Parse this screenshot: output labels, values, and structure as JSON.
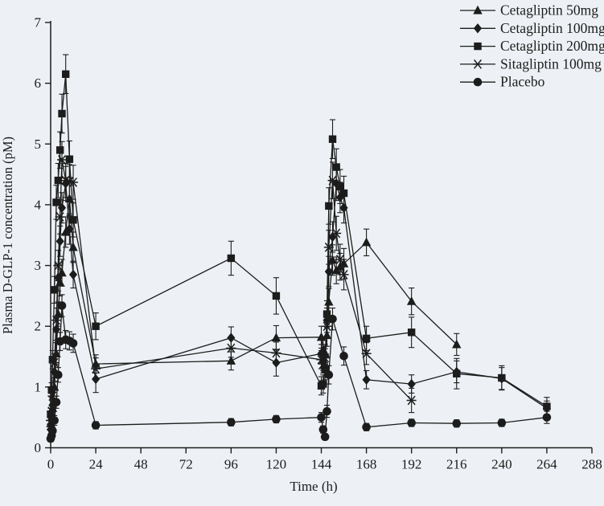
{
  "figure": {
    "background": "#edf1f5",
    "ink": "#1c1c1c"
  },
  "chart_data": {
    "type": "line",
    "title": "",
    "xlabel": "Time (h)",
    "ylabel": "Plasma D-GLP-1 concentration (pM)",
    "xlim": [
      0,
      288
    ],
    "ylim": [
      0,
      7
    ],
    "xticks": [
      0,
      24,
      48,
      72,
      96,
      120,
      144,
      168,
      192,
      216,
      240,
      264,
      288
    ],
    "yticks": [
      0,
      1,
      2,
      3,
      4,
      5,
      6,
      7
    ],
    "grid": false,
    "error_bars": true,
    "legend_position": "top-right",
    "legend": [
      "Cetagliptin 50mg",
      "Cetagliptin 100mg",
      "Cetagliptin 200mg",
      "Sitagliptin 100mg",
      "Placebo"
    ],
    "series": [
      {
        "name": "Cetagliptin 50mg",
        "marker": "triangle",
        "points": [
          [
            0,
            0.4,
            0.1
          ],
          [
            0.5,
            0.5,
            0.1
          ],
          [
            1,
            0.65,
            0.12
          ],
          [
            2,
            1.0,
            0.15
          ],
          [
            3,
            1.55,
            0.18
          ],
          [
            4,
            2.2,
            0.2
          ],
          [
            5,
            2.72,
            0.22
          ],
          [
            6,
            2.88,
            0.22
          ],
          [
            8,
            3.55,
            0.25
          ],
          [
            10,
            4.1,
            0.28
          ],
          [
            12,
            3.3,
            0.25
          ],
          [
            24,
            1.38,
            0.15
          ],
          [
            96,
            1.43,
            0.15
          ],
          [
            120,
            1.81,
            0.2
          ],
          [
            144,
            1.82,
            0.18
          ],
          [
            145,
            1.62,
            0.15
          ],
          [
            146,
            1.55,
            0.15
          ],
          [
            147,
            1.85,
            0.18
          ],
          [
            148,
            2.4,
            0.22
          ],
          [
            150,
            3.09,
            0.25
          ],
          [
            152,
            2.92,
            0.22
          ],
          [
            154,
            2.98,
            0.22
          ],
          [
            156,
            3.03,
            0.25
          ],
          [
            168,
            3.38,
            0.22
          ],
          [
            192,
            2.41,
            0.22
          ],
          [
            216,
            1.7,
            0.18
          ]
        ]
      },
      {
        "name": "Cetagliptin 100mg",
        "marker": "diamond",
        "points": [
          [
            0,
            0.3,
            0.08
          ],
          [
            0.5,
            0.45,
            0.1
          ],
          [
            1,
            0.7,
            0.12
          ],
          [
            2,
            1.25,
            0.15
          ],
          [
            3,
            1.95,
            0.18
          ],
          [
            4,
            2.8,
            0.22
          ],
          [
            5,
            3.4,
            0.25
          ],
          [
            6,
            3.95,
            0.25
          ],
          [
            8,
            4.35,
            0.28
          ],
          [
            10,
            3.6,
            0.25
          ],
          [
            12,
            2.85,
            0.22
          ],
          [
            24,
            1.13,
            0.22
          ],
          [
            96,
            1.81,
            0.18
          ],
          [
            120,
            1.4,
            0.22
          ],
          [
            144,
            1.55,
            0.15
          ],
          [
            145,
            1.42,
            0.15
          ],
          [
            146,
            1.52,
            0.15
          ],
          [
            147,
            2.1,
            0.2
          ],
          [
            148,
            2.9,
            0.25
          ],
          [
            150,
            3.47,
            0.25
          ],
          [
            152,
            4.35,
            0.28
          ],
          [
            154,
            4.12,
            0.25
          ],
          [
            156,
            3.95,
            0.25
          ],
          [
            168,
            1.12,
            0.15
          ],
          [
            192,
            1.05,
            0.15
          ],
          [
            216,
            1.25,
            0.18
          ],
          [
            240,
            1.14,
            0.18
          ],
          [
            264,
            0.65,
            0.12
          ]
        ]
      },
      {
        "name": "Cetagliptin 200mg",
        "marker": "square",
        "points": [
          [
            0,
            0.55,
            0.1
          ],
          [
            0.5,
            0.95,
            0.12
          ],
          [
            1,
            1.45,
            0.15
          ],
          [
            2,
            2.6,
            0.22
          ],
          [
            3,
            4.04,
            0.28
          ],
          [
            4,
            4.4,
            0.28
          ],
          [
            5,
            4.9,
            0.3
          ],
          [
            6,
            5.5,
            0.32
          ],
          [
            8,
            6.15,
            0.32
          ],
          [
            10,
            4.75,
            0.3
          ],
          [
            12,
            3.75,
            0.28
          ],
          [
            24,
            2.0,
            0.22
          ],
          [
            96,
            3.12,
            0.28
          ],
          [
            120,
            2.5,
            0.3
          ],
          [
            144,
            1.02,
            0.15
          ],
          [
            145,
            1.05,
            0.15
          ],
          [
            146,
            1.3,
            0.18
          ],
          [
            147,
            2.2,
            0.22
          ],
          [
            148,
            3.98,
            0.3
          ],
          [
            150,
            5.08,
            0.32
          ],
          [
            152,
            4.62,
            0.3
          ],
          [
            154,
            4.3,
            0.28
          ],
          [
            156,
            4.19,
            0.28
          ],
          [
            168,
            1.8,
            0.2
          ],
          [
            192,
            1.9,
            0.25
          ],
          [
            216,
            1.22,
            0.25
          ],
          [
            240,
            1.15,
            0.2
          ],
          [
            264,
            0.68,
            0.15
          ]
        ]
      },
      {
        "name": "Sitagliptin 100mg",
        "marker": "asterisk",
        "points": [
          [
            0,
            0.45,
            0.1
          ],
          [
            0.5,
            0.6,
            0.1
          ],
          [
            1,
            0.85,
            0.12
          ],
          [
            2,
            1.4,
            0.15
          ],
          [
            3,
            2.1,
            0.2
          ],
          [
            4,
            3.0,
            0.25
          ],
          [
            5,
            3.8,
            0.28
          ],
          [
            6,
            4.74,
            0.3
          ],
          [
            8,
            4.4,
            0.28
          ],
          [
            10,
            4.38,
            0.28
          ],
          [
            12,
            4.37,
            0.28
          ],
          [
            24,
            1.3,
            0.18
          ],
          [
            96,
            1.64,
            0.15
          ],
          [
            120,
            1.56,
            0.18
          ],
          [
            144,
            1.45,
            0.15
          ],
          [
            145,
            1.38,
            0.15
          ],
          [
            146,
            1.48,
            0.15
          ],
          [
            147,
            2.0,
            0.2
          ],
          [
            148,
            3.3,
            0.28
          ],
          [
            150,
            4.4,
            0.3
          ],
          [
            152,
            3.53,
            0.28
          ],
          [
            154,
            3.1,
            0.25
          ],
          [
            156,
            2.85,
            0.25
          ],
          [
            168,
            1.55,
            0.18
          ],
          [
            192,
            0.78,
            0.2
          ]
        ]
      },
      {
        "name": "Placebo",
        "marker": "circle",
        "points": [
          [
            0,
            0.15,
            0.05
          ],
          [
            0.5,
            0.2,
            0.05
          ],
          [
            1,
            0.28,
            0.06
          ],
          [
            2,
            0.45,
            0.08
          ],
          [
            3,
            0.75,
            0.1
          ],
          [
            4,
            1.2,
            0.12
          ],
          [
            5,
            1.75,
            0.15
          ],
          [
            6,
            2.34,
            0.18
          ],
          [
            8,
            1.78,
            0.15
          ],
          [
            10,
            1.76,
            0.15
          ],
          [
            12,
            1.72,
            0.15
          ],
          [
            24,
            0.37,
            0.06
          ],
          [
            96,
            0.42,
            0.06
          ],
          [
            120,
            0.47,
            0.06
          ],
          [
            144,
            0.5,
            0.08
          ],
          [
            145,
            0.3,
            0.06
          ],
          [
            146,
            0.18,
            0.05
          ],
          [
            147,
            0.6,
            0.1
          ],
          [
            148,
            1.2,
            0.15
          ],
          [
            150,
            2.12,
            0.18
          ],
          [
            156,
            1.51,
            0.15
          ],
          [
            168,
            0.34,
            0.06
          ],
          [
            192,
            0.41,
            0.06
          ],
          [
            216,
            0.4,
            0.06
          ],
          [
            240,
            0.41,
            0.06
          ],
          [
            264,
            0.5,
            0.1
          ]
        ]
      }
    ]
  }
}
